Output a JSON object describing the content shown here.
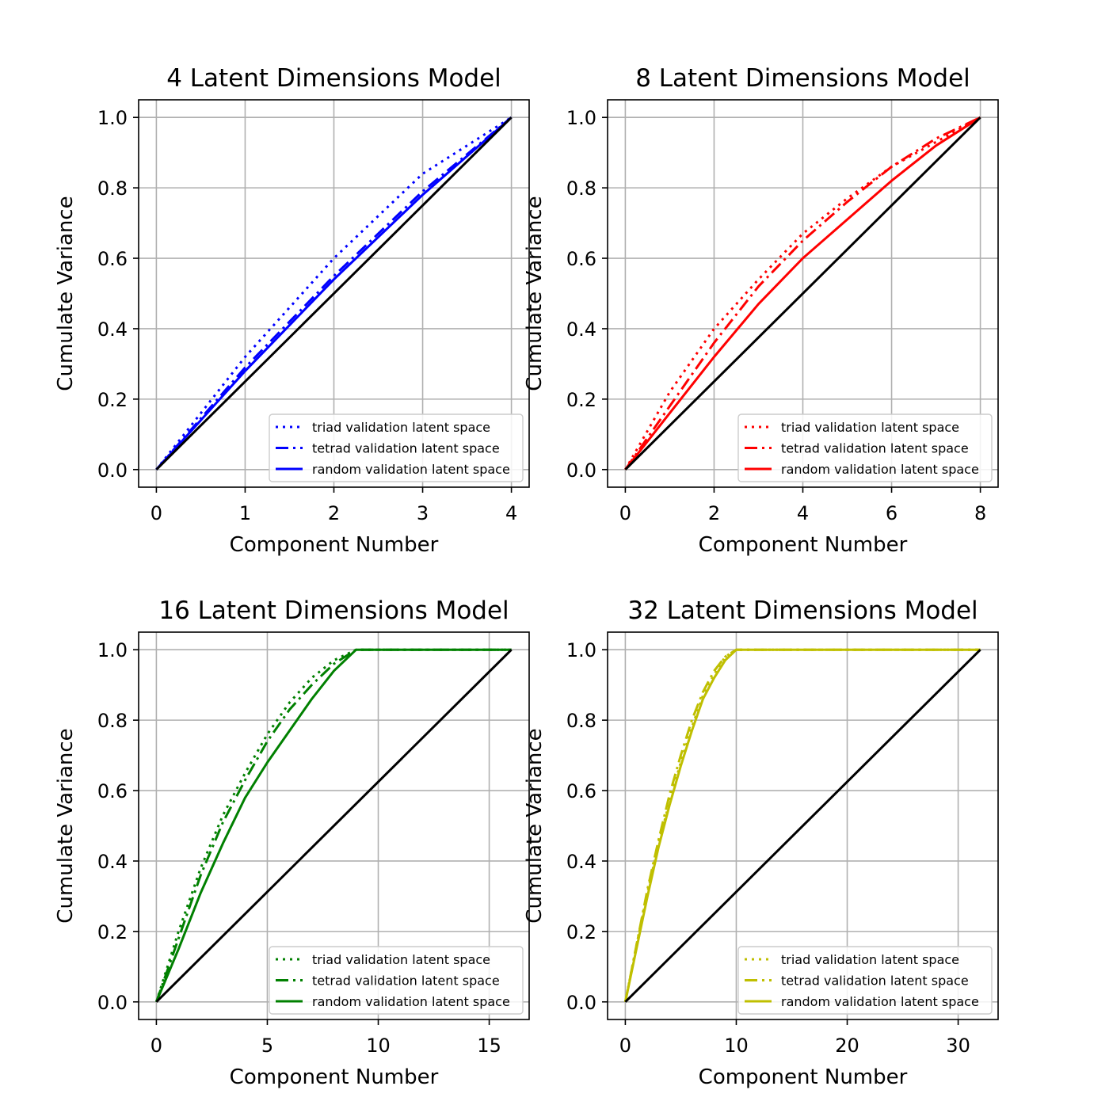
{
  "chart_data": [
    {
      "type": "line",
      "title": "4 Latent Dimensions Model",
      "xlabel": "Component Number",
      "ylabel": "Cumulate Variance",
      "xlim": [
        -0.2,
        4.2
      ],
      "ylim": [
        -0.05,
        1.05
      ],
      "xticks": [
        0,
        1,
        2,
        3,
        4
      ],
      "yticks": [
        0.0,
        0.2,
        0.4,
        0.6,
        0.8,
        1.0
      ],
      "grid": true,
      "legend_position": "lower-right",
      "color": "#0000ff",
      "series": [
        {
          "name": "triad validation latent space",
          "style": "dotted",
          "x": [
            0,
            1,
            2,
            3,
            4
          ],
          "y": [
            0,
            0.32,
            0.6,
            0.84,
            1.0
          ]
        },
        {
          "name": "tetrad validation latent space",
          "style": "dashdot",
          "x": [
            0,
            1,
            2,
            3,
            4
          ],
          "y": [
            0,
            0.29,
            0.55,
            0.79,
            1.0
          ]
        },
        {
          "name": "random validation latent space",
          "style": "solid",
          "x": [
            0,
            1,
            2,
            3,
            4
          ],
          "y": [
            0,
            0.28,
            0.54,
            0.78,
            1.0
          ]
        },
        {
          "style": "solid",
          "color": "#000000",
          "x": [
            0,
            4
          ],
          "y": [
            0,
            1
          ]
        }
      ]
    },
    {
      "type": "line",
      "title": "8 Latent Dimensions Model",
      "xlabel": "Component Number",
      "ylabel": "Cumulate Variance",
      "xlim": [
        -0.4,
        8.4
      ],
      "ylim": [
        -0.05,
        1.05
      ],
      "xticks": [
        0,
        2,
        4,
        6,
        8
      ],
      "yticks": [
        0.0,
        0.2,
        0.4,
        0.6,
        0.8,
        1.0
      ],
      "grid": true,
      "legend_position": "lower-right",
      "color": "#ff0000",
      "series": [
        {
          "name": "triad validation latent space",
          "style": "dotted",
          "x": [
            0,
            1,
            2,
            3,
            4,
            5,
            6,
            7,
            8
          ],
          "y": [
            0,
            0.22,
            0.4,
            0.54,
            0.67,
            0.77,
            0.86,
            0.93,
            1.0
          ]
        },
        {
          "name": "tetrad validation latent space",
          "style": "dashdot",
          "x": [
            0,
            1,
            2,
            3,
            4,
            5,
            6,
            7,
            8
          ],
          "y": [
            0,
            0.18,
            0.36,
            0.52,
            0.65,
            0.76,
            0.86,
            0.94,
            1.0
          ]
        },
        {
          "name": "random validation latent space",
          "style": "solid",
          "x": [
            0,
            1,
            2,
            3,
            4,
            5,
            6,
            7,
            8
          ],
          "y": [
            0,
            0.16,
            0.32,
            0.47,
            0.6,
            0.71,
            0.82,
            0.92,
            1.0
          ]
        },
        {
          "style": "solid",
          "color": "#000000",
          "x": [
            0,
            8
          ],
          "y": [
            0,
            1
          ]
        }
      ]
    },
    {
      "type": "line",
      "title": "16 Latent Dimensions Model",
      "xlabel": "Component Number",
      "ylabel": "Cumulate Variance",
      "xlim": [
        -0.8,
        16.8
      ],
      "ylim": [
        -0.05,
        1.05
      ],
      "xticks": [
        0,
        5,
        10,
        15
      ],
      "yticks": [
        0.0,
        0.2,
        0.4,
        0.6,
        0.8,
        1.0
      ],
      "grid": true,
      "legend_position": "lower-right",
      "color": "#008000",
      "series": [
        {
          "name": "triad validation latent space",
          "style": "dotted",
          "x": [
            0,
            1,
            2,
            3,
            4,
            5,
            6,
            7,
            8,
            9,
            16
          ],
          "y": [
            0,
            0.2,
            0.38,
            0.53,
            0.65,
            0.76,
            0.85,
            0.92,
            0.97,
            1.0,
            1.0
          ]
        },
        {
          "name": "tetrad validation latent space",
          "style": "dashdot",
          "x": [
            0,
            1,
            2,
            3,
            4,
            5,
            6,
            7,
            8,
            9,
            16
          ],
          "y": [
            0,
            0.18,
            0.36,
            0.51,
            0.63,
            0.74,
            0.83,
            0.9,
            0.96,
            1.0,
            1.0
          ]
        },
        {
          "name": "random validation latent space",
          "style": "solid",
          "x": [
            0,
            1,
            2,
            3,
            4,
            5,
            6,
            7,
            8,
            9,
            16
          ],
          "y": [
            0,
            0.15,
            0.31,
            0.45,
            0.58,
            0.68,
            0.77,
            0.86,
            0.94,
            1.0,
            1.0
          ]
        },
        {
          "style": "solid",
          "color": "#000000",
          "x": [
            0,
            16
          ],
          "y": [
            0,
            1
          ]
        }
      ]
    },
    {
      "type": "line",
      "title": "32 Latent Dimensions Model",
      "xlabel": "Component Number",
      "ylabel": "Cumulate Variance",
      "xlim": [
        -1.6,
        33.6
      ],
      "ylim": [
        -0.05,
        1.05
      ],
      "xticks": [
        0,
        10,
        20,
        30
      ],
      "yticks": [
        0.0,
        0.2,
        0.4,
        0.6,
        0.8,
        1.0
      ],
      "grid": true,
      "legend_position": "lower-right",
      "color": "#bfbf00",
      "series": [
        {
          "name": "triad validation latent space",
          "style": "dotted",
          "x": [
            0,
            1,
            2,
            3,
            4,
            5,
            6,
            7,
            8,
            9,
            10,
            32
          ],
          "y": [
            0,
            0.16,
            0.31,
            0.45,
            0.57,
            0.68,
            0.78,
            0.87,
            0.93,
            0.98,
            1.0,
            1.0
          ]
        },
        {
          "name": "tetrad validation latent space",
          "style": "dashdot",
          "x": [
            0,
            1,
            2,
            3,
            4,
            5,
            6,
            7,
            8,
            9,
            10,
            32
          ],
          "y": [
            0,
            0.16,
            0.32,
            0.46,
            0.59,
            0.7,
            0.8,
            0.88,
            0.94,
            0.98,
            1.0,
            1.0
          ]
        },
        {
          "name": "random validation latent space",
          "style": "solid",
          "x": [
            0,
            1,
            2,
            3,
            4,
            5,
            6,
            7,
            8,
            9,
            10,
            32
          ],
          "y": [
            0,
            0.15,
            0.3,
            0.44,
            0.56,
            0.67,
            0.77,
            0.86,
            0.92,
            0.97,
            1.0,
            1.0
          ]
        },
        {
          "style": "solid",
          "color": "#000000",
          "x": [
            0,
            32
          ],
          "y": [
            0,
            1
          ]
        }
      ]
    }
  ]
}
